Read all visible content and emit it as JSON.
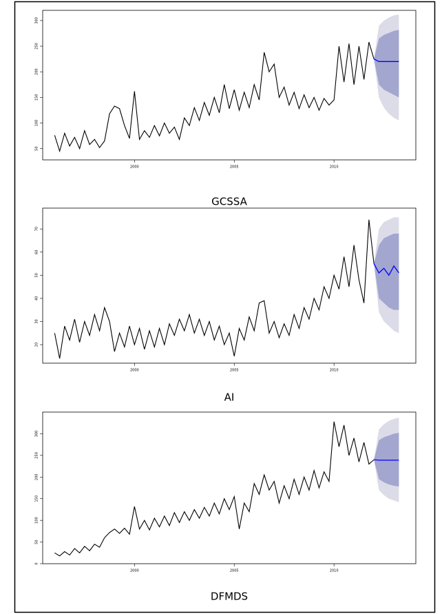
{
  "chart_data": [
    {
      "type": "line",
      "title": "GCSSA",
      "x": [
        1996,
        1996.25,
        1996.5,
        1996.75,
        1997,
        1997.25,
        1997.5,
        1997.75,
        1998,
        1998.25,
        1998.5,
        1998.75,
        1999,
        1999.25,
        1999.5,
        1999.75,
        2000,
        2000.25,
        2000.5,
        2000.75,
        2001,
        2001.25,
        2001.5,
        2001.75,
        2002,
        2002.25,
        2002.5,
        2002.75,
        2003,
        2003.25,
        2003.5,
        2003.75,
        2004,
        2004.25,
        2004.5,
        2004.75,
        2005,
        2005.25,
        2005.5,
        2005.75,
        2006,
        2006.25,
        2006.5,
        2006.75,
        2007,
        2007.25,
        2007.5,
        2007.75,
        2008,
        2008.25,
        2008.5,
        2008.75,
        2009,
        2009.25,
        2009.5,
        2009.75,
        2010,
        2010.25,
        2010.5,
        2010.75,
        2011,
        2011.25,
        2011.5,
        2011.75,
        2012
      ],
      "values": [
        76,
        45,
        80,
        55,
        72,
        50,
        85,
        58,
        68,
        52,
        65,
        118,
        133,
        128,
        95,
        70,
        162,
        68,
        85,
        72,
        95,
        75,
        100,
        80,
        92,
        68,
        110,
        95,
        130,
        105,
        140,
        115,
        150,
        120,
        175,
        128,
        165,
        125,
        160,
        130,
        175,
        145,
        238,
        200,
        215,
        150,
        170,
        135,
        160,
        128,
        155,
        130,
        150,
        125,
        148,
        135,
        145,
        250,
        180,
        255,
        175,
        250,
        185,
        258,
        225
      ],
      "color": "#000000",
      "forecast": {
        "x": [
          2012,
          2012.25,
          2012.5,
          2012.75,
          2013,
          2013.25
        ],
        "values": [
          225,
          220,
          220,
          220,
          220,
          220
        ],
        "color": "#0000ff",
        "lo80": [
          225,
          175,
          165,
          160,
          155,
          150
        ],
        "hi80": [
          225,
          265,
          272,
          276,
          280,
          282
        ],
        "lo95": [
          225,
          150,
          130,
          118,
          110,
          105
        ],
        "hi95": [
          225,
          290,
          300,
          306,
          310,
          312
        ],
        "band80_color": "#a3a6cf",
        "band95_color": "#dcdce8"
      },
      "xlim": [
        1995.4,
        2014.1
      ],
      "ylim": [
        28,
        320
      ],
      "xticks": [
        2000,
        2005,
        2010
      ],
      "yticks": [
        50,
        100,
        150,
        200,
        250,
        300
      ]
    },
    {
      "type": "line",
      "title": "AI",
      "x": [
        1996,
        1996.25,
        1996.5,
        1996.75,
        1997,
        1997.25,
        1997.5,
        1997.75,
        1998,
        1998.25,
        1998.5,
        1998.75,
        1999,
        1999.25,
        1999.5,
        1999.75,
        2000,
        2000.25,
        2000.5,
        2000.75,
        2001,
        2001.25,
        2001.5,
        2001.75,
        2002,
        2002.25,
        2002.5,
        2002.75,
        2003,
        2003.25,
        2003.5,
        2003.75,
        2004,
        2004.25,
        2004.5,
        2004.75,
        2005,
        2005.25,
        2005.5,
        2005.75,
        2006,
        2006.25,
        2006.5,
        2006.75,
        2007,
        2007.25,
        2007.5,
        2007.75,
        2008,
        2008.25,
        2008.5,
        2008.75,
        2009,
        2009.25,
        2009.5,
        2009.75,
        2010,
        2010.25,
        2010.5,
        2010.75,
        2011,
        2011.25,
        2011.5,
        2011.75,
        2012
      ],
      "values": [
        25,
        14,
        28,
        22,
        31,
        21,
        30,
        24,
        33,
        26,
        36,
        30,
        17,
        25,
        19,
        28,
        20,
        27,
        18,
        26,
        19,
        27,
        20,
        29,
        24,
        31,
        26,
        33,
        25,
        31,
        24,
        30,
        22,
        28,
        20,
        25,
        15,
        27,
        22,
        32,
        26,
        38,
        39,
        25,
        30,
        23,
        29,
        24,
        33,
        27,
        36,
        31,
        40,
        35,
        45,
        40,
        50,
        44,
        58,
        45,
        63,
        48,
        38,
        74,
        55
      ],
      "color": "#000000",
      "forecast": {
        "x": [
          2012,
          2012.25,
          2012.5,
          2012.75,
          2013,
          2013.25
        ],
        "values": [
          55,
          51,
          53,
          50,
          54,
          51
        ],
        "color": "#0000ff",
        "lo80": [
          55,
          40,
          38,
          36,
          35,
          35
        ],
        "hi80": [
          55,
          63,
          66,
          67,
          68,
          68
        ],
        "lo95": [
          55,
          34,
          30,
          28,
          26,
          25
        ],
        "hi95": [
          55,
          70,
          73,
          74,
          75,
          75
        ],
        "band80_color": "#a3a6cf",
        "band95_color": "#dcdce8"
      },
      "xlim": [
        1995.4,
        2014.1
      ],
      "ylim": [
        12,
        79
      ],
      "xticks": [
        2000,
        2005,
        2010
      ],
      "yticks": [
        20,
        30,
        40,
        50,
        60,
        70
      ]
    },
    {
      "type": "line",
      "title": "DFMDS",
      "x": [
        1996,
        1996.25,
        1996.5,
        1996.75,
        1997,
        1997.25,
        1997.5,
        1997.75,
        1998,
        1998.25,
        1998.5,
        1998.75,
        1999,
        1999.25,
        1999.5,
        1999.75,
        2000,
        2000.25,
        2000.5,
        2000.75,
        2001,
        2001.25,
        2001.5,
        2001.75,
        2002,
        2002.25,
        2002.5,
        2002.75,
        2003,
        2003.25,
        2003.5,
        2003.75,
        2004,
        2004.25,
        2004.5,
        2004.75,
        2005,
        2005.25,
        2005.5,
        2005.75,
        2006,
        2006.25,
        2006.5,
        2006.75,
        2007,
        2007.25,
        2007.5,
        2007.75,
        2008,
        2008.25,
        2008.5,
        2008.75,
        2009,
        2009.25,
        2009.5,
        2009.75,
        2010,
        2010.25,
        2010.5,
        2010.75,
        2011,
        2011.25,
        2011.5,
        2011.75,
        2012
      ],
      "values": [
        25,
        18,
        28,
        20,
        35,
        25,
        40,
        30,
        45,
        38,
        60,
        72,
        80,
        70,
        82,
        68,
        132,
        80,
        100,
        78,
        105,
        85,
        110,
        88,
        118,
        95,
        120,
        100,
        125,
        105,
        130,
        110,
        140,
        115,
        150,
        125,
        155,
        80,
        140,
        120,
        185,
        160,
        205,
        170,
        190,
        140,
        180,
        150,
        195,
        160,
        200,
        170,
        215,
        175,
        212,
        190,
        328,
        270,
        320,
        250,
        290,
        235,
        280,
        230,
        240
      ],
      "color": "#000000",
      "forecast": {
        "x": [
          2012,
          2012.25,
          2012.5,
          2012.75,
          2013,
          2013.25
        ],
        "values": [
          240,
          239,
          239,
          239,
          239,
          239
        ],
        "color": "#0000ff",
        "lo80": [
          240,
          195,
          188,
          183,
          180,
          178
        ],
        "hi80": [
          240,
          285,
          292,
          296,
          300,
          302
        ],
        "lo95": [
          240,
          170,
          158,
          150,
          146,
          142
        ],
        "hi95": [
          240,
          310,
          322,
          330,
          334,
          337
        ],
        "band80_color": "#a3a6cf",
        "band95_color": "#dcdce8"
      },
      "xlim": [
        1995.4,
        2014.1
      ],
      "ylim": [
        0,
        350
      ],
      "xticks": [
        2000,
        2005,
        2010
      ],
      "yticks": [
        0,
        50,
        100,
        150,
        200,
        250,
        300
      ]
    }
  ]
}
